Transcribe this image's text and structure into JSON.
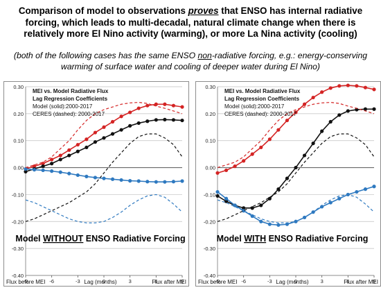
{
  "headline": {
    "part1": "Comparison of model to observations ",
    "emphasis": "proves",
    "part2": " that ENSO has internal radiative forcing, which leads to multi-decadal, natural climate change when there is relatively more El Nino activity (warming), or more La Nina activity (cooling)"
  },
  "subtext": {
    "part1": "(both of the following cases has the same ENSO ",
    "emphasis": "non",
    "part2": "-radiative forcing, e.g.: energy-conserving warming of surface water and cooling of deeper water during El Nino)"
  },
  "colors": {
    "red": "#d42424",
    "black": "#111111",
    "blue": "#2e79c0",
    "grid": "#bfbfbf",
    "frame": "#8c8c8c"
  },
  "chart_data": [
    {
      "type": "line",
      "legend_lines": [
        "MEI vs. Model Radiative Flux",
        "Lag Regression Coefficients",
        "Model (solid):2000-2017",
        "CERES (dashed): 2000-2017"
      ],
      "caption": "Model WITHOUT ENSO Radiative Forcing",
      "caption_parts": [
        "Model ",
        "WITHOUT",
        " ENSO Radiative Forcing"
      ],
      "x_label_left": "Flux before MEI",
      "x_label_mid": "Lag (months)",
      "x_label_right": "Flux after MEI",
      "xlim": [
        -9,
        9
      ],
      "ylim": [
        -0.4,
        0.3
      ],
      "x_ticks": [
        "-9",
        "-6",
        "-3",
        "0",
        "3",
        "6",
        "9"
      ],
      "y_ticks": [
        "-0.40",
        "-0.30",
        "-0.20",
        "-0.10",
        "0.00",
        "0.10",
        "0.20",
        "0.30"
      ],
      "x": [
        -9,
        -8,
        -7,
        -6,
        -5,
        -4,
        -3,
        -2,
        -1,
        0,
        1,
        2,
        3,
        4,
        5,
        6,
        7,
        8,
        9
      ],
      "grid": true,
      "series": [
        {
          "color": "red",
          "style": "solid",
          "markers": true,
          "values": [
            -0.005,
            0.005,
            0.015,
            0.03,
            0.045,
            0.065,
            0.085,
            0.105,
            0.13,
            0.15,
            0.17,
            0.19,
            0.205,
            0.22,
            0.23,
            0.235,
            0.235,
            0.23,
            0.225
          ]
        },
        {
          "color": "black",
          "style": "solid",
          "markers": true,
          "values": [
            -0.015,
            -0.005,
            0.005,
            0.015,
            0.03,
            0.045,
            0.06,
            0.075,
            0.095,
            0.11,
            0.125,
            0.14,
            0.155,
            0.165,
            0.172,
            0.177,
            0.178,
            0.177,
            0.175
          ]
        },
        {
          "color": "blue",
          "style": "solid",
          "markers": true,
          "values": [
            -0.005,
            -0.008,
            -0.01,
            -0.013,
            -0.017,
            -0.022,
            -0.028,
            -0.033,
            -0.037,
            -0.04,
            -0.043,
            -0.046,
            -0.049,
            -0.05,
            -0.052,
            -0.053,
            -0.053,
            -0.052,
            -0.05
          ]
        },
        {
          "color": "red",
          "style": "dashed",
          "markers": false,
          "values": [
            0.0,
            0.01,
            0.02,
            0.04,
            0.07,
            0.1,
            0.14,
            0.175,
            0.2,
            0.215,
            0.225,
            0.235,
            0.24,
            0.242,
            0.238,
            0.228,
            0.22,
            0.21,
            0.2
          ]
        },
        {
          "color": "black",
          "style": "dashed",
          "markers": false,
          "values": [
            -0.2,
            -0.19,
            -0.175,
            -0.16,
            -0.145,
            -0.13,
            -0.11,
            -0.09,
            -0.06,
            -0.02,
            0.02,
            0.055,
            0.09,
            0.115,
            0.125,
            0.125,
            0.11,
            0.085,
            0.04
          ]
        },
        {
          "color": "blue",
          "style": "dashed",
          "markers": false,
          "values": [
            -0.12,
            -0.13,
            -0.145,
            -0.16,
            -0.175,
            -0.19,
            -0.2,
            -0.205,
            -0.205,
            -0.2,
            -0.185,
            -0.165,
            -0.14,
            -0.12,
            -0.105,
            -0.1,
            -0.11,
            -0.135,
            -0.165
          ]
        }
      ]
    },
    {
      "type": "line",
      "legend_lines": [
        "MEI vs. Model Radiative Flux",
        "Lag Regression Coefficients",
        "Model (solid):2000-2017",
        "CERES (dashed): 2000-2017"
      ],
      "caption": "Model WITH ENSO Radiative Forcing",
      "caption_parts": [
        "Model ",
        "WITH",
        " ENSO Radiative Forcing"
      ],
      "x_label_left": "Flux before MEI",
      "x_label_mid": "Lag (months)",
      "x_label_right": "Flux after MEI",
      "xlim": [
        -9,
        9
      ],
      "ylim": [
        -0.4,
        0.3
      ],
      "x_ticks": [
        "-9",
        "-6",
        "-3",
        "0",
        "3",
        "6",
        "9"
      ],
      "y_ticks": [
        "-0.40",
        "-0.30",
        "-0.20",
        "-0.10",
        "0.00",
        "0.10",
        "0.20",
        "0.30"
      ],
      "x": [
        -9,
        -8,
        -7,
        -6,
        -5,
        -4,
        -3,
        -2,
        -1,
        0,
        1,
        2,
        3,
        4,
        5,
        6,
        7,
        8,
        9
      ],
      "grid": true,
      "series": [
        {
          "color": "red",
          "style": "solid",
          "markers": true,
          "values": [
            -0.02,
            -0.01,
            0.005,
            0.025,
            0.05,
            0.075,
            0.105,
            0.14,
            0.175,
            0.205,
            0.235,
            0.26,
            0.28,
            0.295,
            0.303,
            0.305,
            0.303,
            0.297,
            0.29
          ]
        },
        {
          "color": "black",
          "style": "solid",
          "markers": true,
          "values": [
            -0.105,
            -0.125,
            -0.14,
            -0.15,
            -0.15,
            -0.14,
            -0.115,
            -0.08,
            -0.04,
            0.0,
            0.045,
            0.09,
            0.135,
            0.17,
            0.195,
            0.21,
            0.215,
            0.217,
            0.217
          ]
        },
        {
          "color": "blue",
          "style": "solid",
          "markers": true,
          "values": [
            -0.09,
            -0.115,
            -0.14,
            -0.16,
            -0.18,
            -0.2,
            -0.21,
            -0.213,
            -0.21,
            -0.2,
            -0.185,
            -0.165,
            -0.145,
            -0.13,
            -0.115,
            -0.1,
            -0.09,
            -0.08,
            -0.07
          ]
        },
        {
          "color": "red",
          "style": "dashed",
          "markers": false,
          "values": [
            0.0,
            0.01,
            0.02,
            0.04,
            0.07,
            0.1,
            0.14,
            0.175,
            0.2,
            0.215,
            0.225,
            0.235,
            0.24,
            0.242,
            0.238,
            0.228,
            0.22,
            0.21,
            0.2
          ]
        },
        {
          "color": "black",
          "style": "dashed",
          "markers": false,
          "values": [
            -0.2,
            -0.19,
            -0.175,
            -0.16,
            -0.145,
            -0.13,
            -0.11,
            -0.09,
            -0.06,
            -0.02,
            0.02,
            0.055,
            0.09,
            0.115,
            0.125,
            0.125,
            0.11,
            0.085,
            0.04
          ]
        },
        {
          "color": "blue",
          "style": "dashed",
          "markers": false,
          "values": [
            -0.12,
            -0.13,
            -0.145,
            -0.16,
            -0.175,
            -0.19,
            -0.2,
            -0.205,
            -0.205,
            -0.2,
            -0.185,
            -0.165,
            -0.14,
            -0.12,
            -0.105,
            -0.1,
            -0.11,
            -0.135,
            -0.165
          ]
        }
      ]
    }
  ]
}
